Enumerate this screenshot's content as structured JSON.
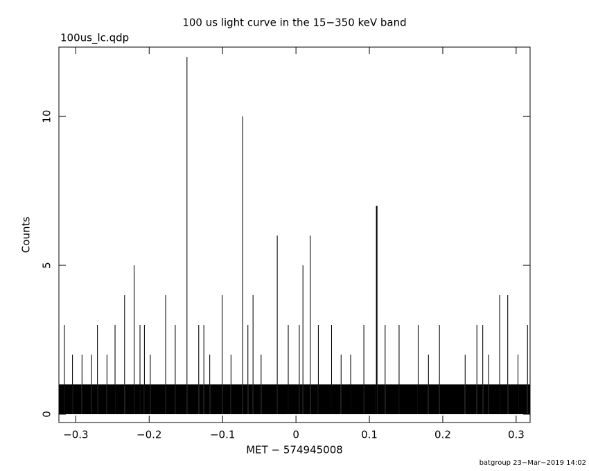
{
  "chart_data": {
    "type": "histogram",
    "title": "100 us light curve in the 15−350 keV band",
    "subtitle": "100us_lc.qdp",
    "x_label": "MET − 574945008",
    "y_label": "Counts",
    "footer": "batgroup 23−Mar−2019 14:02",
    "color": "#000000",
    "bins": [
      -0.323,
      -0.316,
      -0.315,
      -0.305,
      -0.304,
      -0.292,
      -0.291,
      -0.279,
      -0.278,
      -0.271,
      -0.27,
      -0.258,
      -0.257,
      -0.247,
      -0.246,
      -0.234,
      -0.233,
      -0.221,
      -0.22,
      -0.213,
      -0.212,
      -0.207,
      -0.206,
      -0.199,
      -0.198,
      -0.178,
      -0.177,
      -0.165,
      -0.164,
      -0.149,
      -0.148,
      -0.133,
      -0.132,
      -0.126,
      -0.125,
      -0.118,
      -0.117,
      -0.101,
      -0.1,
      -0.089,
      -0.088,
      -0.073,
      -0.072,
      -0.066,
      -0.065,
      -0.059,
      -0.058,
      -0.048,
      -0.047,
      -0.026,
      -0.025,
      -0.011,
      -0.01,
      0.004,
      0.005,
      0.009,
      0.01,
      0.019,
      0.02,
      0.03,
      0.031,
      0.048,
      0.049,
      0.061,
      0.062,
      0.074,
      0.075,
      0.092,
      0.093,
      0.109,
      0.111,
      0.121,
      0.122,
      0.14,
      0.141,
      0.166,
      0.167,
      0.18,
      0.181,
      0.195,
      0.196,
      0.23,
      0.231,
      0.246,
      0.247,
      0.254,
      0.255,
      0.262,
      0.263,
      0.277,
      0.278,
      0.288,
      0.289,
      0.302,
      0.303,
      0.315,
      0.316,
      0.319
    ],
    "counts": [
      1,
      3,
      1,
      2,
      1,
      2,
      1,
      2,
      1,
      3,
      1,
      2,
      1,
      3,
      1,
      4,
      1,
      5,
      1,
      3,
      1,
      3,
      1,
      2,
      1,
      4,
      1,
      3,
      1,
      12,
      1,
      3,
      1,
      3,
      1,
      2,
      1,
      4,
      1,
      2,
      1,
      10,
      1,
      3,
      1,
      4,
      1,
      2,
      1,
      6,
      1,
      3,
      1,
      3,
      1,
      5,
      1,
      6,
      1,
      3,
      1,
      3,
      1,
      2,
      1,
      2,
      1,
      3,
      1,
      7,
      1,
      3,
      1,
      3,
      1,
      3,
      1,
      2,
      1,
      3,
      1,
      2,
      1,
      3,
      1,
      3,
      1,
      2,
      1,
      4,
      1,
      4,
      1,
      2,
      1,
      3,
      1
    ],
    "xlim": [
      -0.323,
      0.319
    ],
    "ylim": [
      -0.28,
      12.33
    ],
    "xticks": [
      {
        "value": -0.3,
        "label": "−0.3"
      },
      {
        "value": -0.2,
        "label": "−0.2"
      },
      {
        "value": -0.1,
        "label": "−0.1"
      },
      0,
      {
        "value": 0.1,
        "label": "0.1"
      },
      {
        "value": 0.2,
        "label": "0.2"
      },
      {
        "value": 0.3,
        "label": "0.3"
      }
    ],
    "yticks": [
      0,
      5,
      10
    ]
  }
}
